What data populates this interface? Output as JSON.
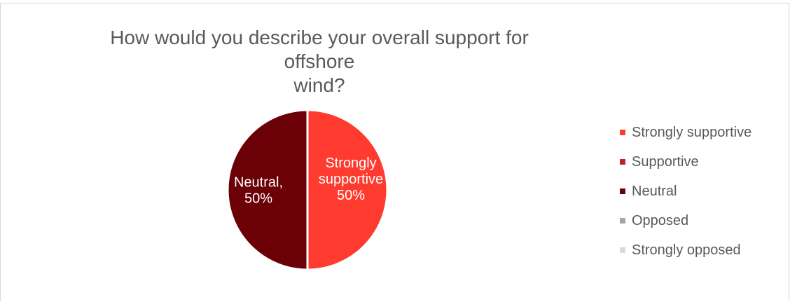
{
  "chart_data": {
    "type": "pie",
    "title": "How would you describe your overall support for offshore wind?",
    "title_lines": [
      "How would you describe your overall support for offshore",
      "wind?"
    ],
    "categories": [
      "Strongly supportive",
      "Supportive",
      "Neutral",
      "Opposed",
      "Strongly opposed"
    ],
    "values": [
      50,
      0,
      50,
      0,
      0
    ],
    "unit": "%",
    "colors": [
      "#ff3b30",
      "#c0222a",
      "#6b0006",
      "#a6a6a6",
      "#d9d9d9"
    ],
    "data_labels": [
      {
        "category": "Strongly supportive",
        "lines": [
          "Strongly",
          "supportive",
          "50%"
        ]
      },
      {
        "category": "Neutral",
        "lines": [
          "Neutral,",
          "50%"
        ]
      }
    ],
    "legend_position": "right",
    "grid": false
  }
}
